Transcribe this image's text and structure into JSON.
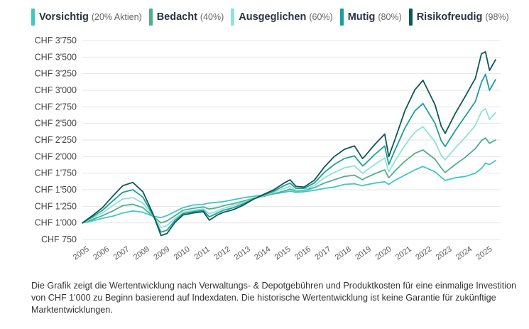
{
  "legend": [
    {
      "name": "Vorsichtig",
      "note": "(20% Aktien)",
      "color": "#3dc7c7"
    },
    {
      "name": "Bedacht",
      "note": "(40%)",
      "color": "#52ad8c"
    },
    {
      "name": "Ausgeglichen",
      "note": "(60%)",
      "color": "#8fe3d4"
    },
    {
      "name": "Mutig",
      "note": "(80%)",
      "color": "#1b9ea0"
    },
    {
      "name": "Risikofreudig",
      "note": "(98%)",
      "color": "#0f5752"
    }
  ],
  "caption": "Die Grafik zeigt die Wertentwicklung nach Verwaltungs- & Depotgebühren und Produktkosten für eine einmalige Investition von CHF 1'000 zu Beginn basierend auf Indexdaten. Die historische Wertentwicklung ist keine Garantie für zukünftige Marktentwicklungen.",
  "chart_data": {
    "type": "line",
    "title": "",
    "xlabel": "",
    "ylabel": "",
    "xlim": [
      2005,
      2025.75
    ],
    "ylim": [
      750,
      3750
    ],
    "yticks": [
      {
        "v": 750,
        "label": "CHF 750"
      },
      {
        "v": 1000,
        "label": "CHF 1'000"
      },
      {
        "v": 1250,
        "label": "CHF 1'250"
      },
      {
        "v": 1500,
        "label": "CHF 1'500"
      },
      {
        "v": 1750,
        "label": "CHF 1'750"
      },
      {
        "v": 2000,
        "label": "CHF 2'000"
      },
      {
        "v": 2250,
        "label": "CHF 2'250"
      },
      {
        "v": 2500,
        "label": "CHF 2'500"
      },
      {
        "v": 2750,
        "label": "CHF 2'750"
      },
      {
        "v": 3000,
        "label": "CHF 3'000"
      },
      {
        "v": 3250,
        "label": "CHF 3'250"
      },
      {
        "v": 3500,
        "label": "CHF 3'500"
      },
      {
        "v": 3750,
        "label": "CHF 3'750"
      }
    ],
    "xticks": [
      {
        "v": 2005,
        "label": "2005"
      },
      {
        "v": 2006,
        "label": "2006"
      },
      {
        "v": 2007,
        "label": "2007"
      },
      {
        "v": 2008,
        "label": "2008"
      },
      {
        "v": 2009,
        "label": "2009"
      },
      {
        "v": 2010,
        "label": "2010"
      },
      {
        "v": 2011,
        "label": "2011"
      },
      {
        "v": 2012,
        "label": "2012"
      },
      {
        "v": 2013,
        "label": "2013"
      },
      {
        "v": 2014,
        "label": "2014"
      },
      {
        "v": 2015,
        "label": "2015"
      },
      {
        "v": 2016,
        "label": "2016"
      },
      {
        "v": 2017,
        "label": "2017"
      },
      {
        "v": 2018,
        "label": "2018"
      },
      {
        "v": 2019,
        "label": "2019"
      },
      {
        "v": 2020,
        "label": "2020"
      },
      {
        "v": 2021,
        "label": "2021"
      },
      {
        "v": 2022,
        "label": "2022"
      },
      {
        "v": 2023,
        "label": "2023"
      },
      {
        "v": 2024,
        "label": "2024"
      },
      {
        "v": 2025,
        "label": "2025"
      }
    ],
    "grid": "horizontal",
    "legend_position": "top",
    "x": [
      2005.0,
      2005.5,
      2006.0,
      2006.5,
      2007.0,
      2007.5,
      2008.0,
      2008.5,
      2008.9,
      2009.2,
      2009.6,
      2010.0,
      2010.5,
      2011.0,
      2011.3,
      2011.7,
      2012.0,
      2012.5,
      2013.0,
      2013.5,
      2014.0,
      2014.5,
      2015.0,
      2015.3,
      2015.6,
      2016.0,
      2016.5,
      2017.0,
      2017.5,
      2018.0,
      2018.5,
      2018.9,
      2019.0,
      2019.5,
      2020.0,
      2020.2,
      2020.5,
      2021.0,
      2021.5,
      2021.9,
      2022.5,
      2022.8,
      2023.0,
      2023.5,
      2024.0,
      2024.5,
      2024.8,
      2025.0,
      2025.2,
      2025.5
    ],
    "series": [
      {
        "name": "Vorsichtig",
        "color": "#3dc7c7",
        "values": [
          1000,
          1030,
          1070,
          1100,
          1150,
          1180,
          1160,
          1100,
          1080,
          1110,
          1170,
          1230,
          1270,
          1280,
          1300,
          1310,
          1320,
          1350,
          1380,
          1400,
          1420,
          1440,
          1460,
          1480,
          1460,
          1470,
          1490,
          1520,
          1540,
          1580,
          1590,
          1560,
          1570,
          1600,
          1620,
          1580,
          1640,
          1720,
          1800,
          1850,
          1770,
          1690,
          1640,
          1680,
          1700,
          1750,
          1820,
          1900,
          1880,
          1940
        ]
      },
      {
        "name": "Bedacht",
        "color": "#52ad8c",
        "values": [
          1000,
          1050,
          1110,
          1180,
          1260,
          1280,
          1230,
          1100,
          1000,
          1030,
          1110,
          1190,
          1220,
          1240,
          1210,
          1230,
          1260,
          1290,
          1330,
          1370,
          1400,
          1440,
          1480,
          1510,
          1480,
          1490,
          1530,
          1600,
          1650,
          1700,
          1720,
          1650,
          1670,
          1740,
          1800,
          1680,
          1780,
          1930,
          2050,
          2100,
          1960,
          1830,
          1760,
          1880,
          1990,
          2120,
          2240,
          2280,
          2200,
          2250
        ]
      },
      {
        "name": "Ausgeglichen",
        "color": "#8fe3d4",
        "values": [
          1000,
          1070,
          1150,
          1260,
          1360,
          1380,
          1300,
          1110,
          930,
          960,
          1070,
          1160,
          1190,
          1210,
          1140,
          1180,
          1220,
          1260,
          1310,
          1360,
          1410,
          1460,
          1520,
          1550,
          1490,
          1500,
          1560,
          1680,
          1760,
          1830,
          1860,
          1750,
          1770,
          1880,
          1980,
          1770,
          1930,
          2170,
          2370,
          2450,
          2220,
          2020,
          1950,
          2130,
          2290,
          2470,
          2680,
          2720,
          2560,
          2660
        ]
      },
      {
        "name": "Mutig",
        "color": "#1b9ea0",
        "values": [
          1000,
          1090,
          1190,
          1330,
          1460,
          1500,
          1390,
          1120,
          860,
          890,
          1040,
          1140,
          1170,
          1190,
          1090,
          1150,
          1190,
          1230,
          1290,
          1360,
          1420,
          1480,
          1560,
          1600,
          1520,
          1520,
          1600,
          1760,
          1880,
          1970,
          2010,
          1860,
          1880,
          2030,
          2160,
          1880,
          2090,
          2430,
          2690,
          2800,
          2500,
          2240,
          2150,
          2390,
          2610,
          2830,
          3120,
          3240,
          3000,
          3160
        ]
      },
      {
        "name": "Risikofreudig",
        "color": "#0f5752",
        "values": [
          1000,
          1110,
          1230,
          1400,
          1560,
          1610,
          1470,
          1140,
          810,
          840,
          1010,
          1120,
          1150,
          1170,
          1040,
          1120,
          1160,
          1200,
          1270,
          1360,
          1430,
          1500,
          1600,
          1650,
          1550,
          1540,
          1640,
          1840,
          2000,
          2110,
          2160,
          1970,
          2000,
          2180,
          2340,
          2000,
          2250,
          2690,
          3010,
          3150,
          2780,
          2460,
          2350,
          2650,
          2910,
          3180,
          3550,
          3580,
          3300,
          3460
        ]
      }
    ]
  }
}
